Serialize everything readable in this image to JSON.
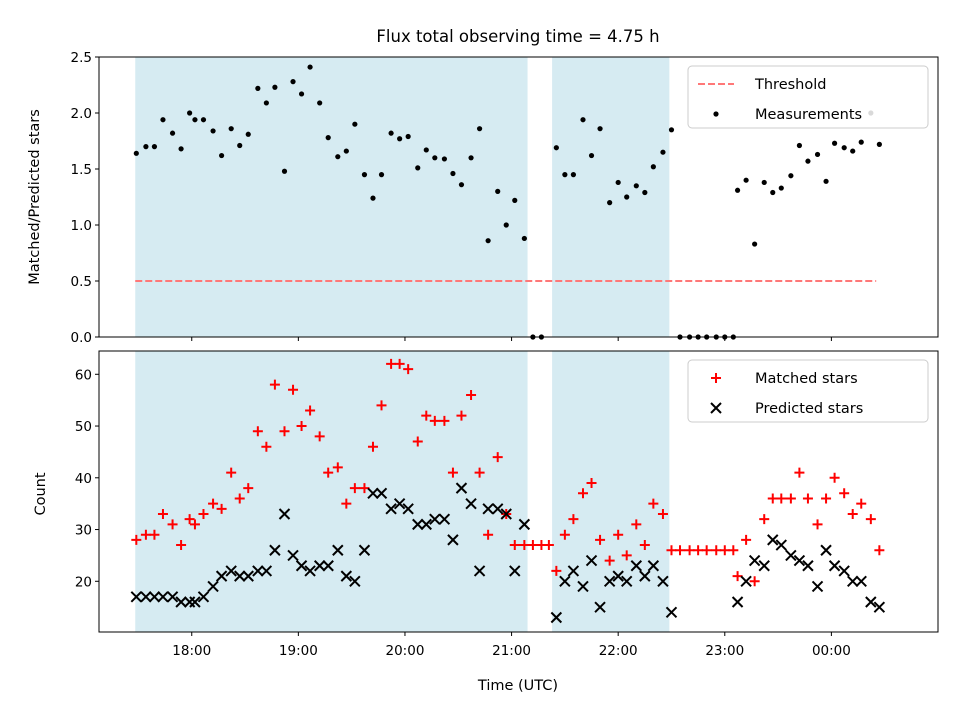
{
  "chart_data": [
    {
      "type": "scatter",
      "title": "Flux total observing time = 4.75 h",
      "xlabel": "",
      "ylabel": "Matched/Predicted stars",
      "xlim": [
        17.13,
        25.0
      ],
      "ylim": [
        0,
        2.5
      ],
      "yticks": [
        0.0,
        0.5,
        1.0,
        1.5,
        2.0,
        2.5
      ],
      "ytick_labels": [
        "0.0",
        "0.5",
        "1.0",
        "1.5",
        "2.0",
        "2.5"
      ],
      "shaded_intervals": [
        [
          17.47,
          21.15
        ],
        [
          21.38,
          22.48
        ]
      ],
      "threshold": {
        "name": "Threshold",
        "value": 0.5,
        "x_range": [
          17.47,
          24.42
        ],
        "color": "#ff7878"
      },
      "legend": [
        "Threshold",
        "Measurements"
      ],
      "series": [
        {
          "name": "Measurements",
          "color": "#000000",
          "x": [
            17.48,
            17.57,
            17.65,
            17.73,
            17.82,
            17.9,
            17.98,
            18.03,
            18.11,
            18.2,
            18.28,
            18.37,
            18.45,
            18.53,
            18.62,
            18.7,
            18.78,
            18.87,
            18.95,
            19.03,
            19.11,
            19.2,
            19.28,
            19.37,
            19.45,
            19.53,
            19.62,
            19.7,
            19.78,
            19.87,
            19.95,
            20.03,
            20.12,
            20.2,
            20.28,
            20.37,
            20.45,
            20.53,
            20.62,
            20.7,
            20.78,
            20.87,
            20.95,
            21.03,
            21.12,
            21.2,
            21.28,
            21.42,
            21.5,
            21.58,
            21.67,
            21.75,
            21.83,
            21.92,
            22.0,
            22.08,
            22.17,
            22.25,
            22.33,
            22.42,
            22.5,
            22.58,
            22.67,
            22.75,
            22.83,
            22.92,
            23.0,
            23.08,
            23.12,
            23.2,
            23.28,
            23.37,
            23.45,
            23.53,
            23.62,
            23.7,
            23.78,
            23.87,
            23.95,
            24.03,
            24.12,
            24.2,
            24.28,
            24.37,
            24.45
          ],
          "y": [
            1.64,
            1.7,
            1.7,
            1.94,
            1.82,
            1.68,
            2.0,
            1.94,
            1.94,
            1.84,
            1.62,
            1.86,
            1.71,
            1.81,
            2.22,
            2.09,
            2.23,
            1.48,
            2.28,
            2.17,
            2.41,
            2.09,
            1.78,
            1.61,
            1.66,
            1.9,
            1.45,
            1.24,
            1.45,
            1.82,
            1.77,
            1.79,
            1.51,
            1.67,
            1.6,
            1.59,
            1.46,
            1.36,
            1.6,
            1.86,
            0.86,
            1.3,
            1.0,
            1.22,
            0.88,
            0,
            0,
            1.69,
            1.45,
            1.45,
            1.94,
            1.62,
            1.86,
            1.2,
            1.38,
            1.25,
            1.35,
            1.29,
            1.52,
            1.65,
            1.85,
            0,
            0,
            0,
            0,
            0,
            0,
            0,
            1.31,
            1.4,
            0.83,
            1.38,
            1.29,
            1.33,
            1.44,
            1.71,
            1.57,
            1.63,
            1.39,
            1.73,
            1.69,
            1.66,
            1.74,
            2.0,
            1.72
          ]
        }
      ]
    },
    {
      "type": "scatter",
      "title": "",
      "xlabel": "Time (UTC)",
      "ylabel": "Count",
      "xlim": [
        17.13,
        25.0
      ],
      "ylim": [
        10.2,
        64.5
      ],
      "yticks": [
        20,
        30,
        40,
        50,
        60
      ],
      "ytick_labels": [
        "20",
        "30",
        "40",
        "50",
        "60"
      ],
      "xticks": [
        18,
        19,
        20,
        21,
        22,
        23,
        24
      ],
      "xtick_labels": [
        "18:00",
        "19:00",
        "20:00",
        "21:00",
        "22:00",
        "23:00",
        "00:00"
      ],
      "shaded_intervals": [
        [
          17.47,
          21.15
        ],
        [
          21.38,
          22.48
        ]
      ],
      "legend": [
        "Matched stars",
        "Predicted stars"
      ],
      "series": [
        {
          "name": "Matched stars",
          "marker": "+",
          "color": "#ff0000",
          "x": [
            17.48,
            17.57,
            17.65,
            17.73,
            17.82,
            17.9,
            17.98,
            18.03,
            18.11,
            18.2,
            18.28,
            18.37,
            18.45,
            18.53,
            18.62,
            18.7,
            18.78,
            18.87,
            18.95,
            19.03,
            19.11,
            19.2,
            19.28,
            19.37,
            19.45,
            19.53,
            19.62,
            19.7,
            19.78,
            19.87,
            19.95,
            20.03,
            20.12,
            20.2,
            20.28,
            20.37,
            20.45,
            20.53,
            20.62,
            20.7,
            20.78,
            20.87,
            20.95,
            21.03,
            21.12,
            21.2,
            21.28,
            21.35,
            21.42,
            21.5,
            21.58,
            21.67,
            21.75,
            21.83,
            21.92,
            22.0,
            22.08,
            22.17,
            22.25,
            22.33,
            22.42,
            22.5,
            22.58,
            22.67,
            22.75,
            22.83,
            22.92,
            23.0,
            23.08,
            23.12,
            23.2,
            23.28,
            23.37,
            23.45,
            23.53,
            23.62,
            23.7,
            23.78,
            23.87,
            23.95,
            24.03,
            24.12,
            24.2,
            24.28,
            24.37,
            24.45
          ],
          "y": [
            28,
            29,
            29,
            33,
            31,
            27,
            32,
            31,
            33,
            35,
            34,
            41,
            36,
            38,
            49,
            46,
            58,
            49,
            57,
            50,
            53,
            48,
            41,
            42,
            35,
            38,
            38,
            46,
            54,
            62,
            62,
            61,
            47,
            52,
            51,
            51,
            41,
            52,
            56,
            41,
            29,
            44,
            33,
            27,
            27,
            27,
            27,
            27,
            22,
            29,
            32,
            37,
            39,
            28,
            24,
            29,
            25,
            31,
            27,
            35,
            33,
            26,
            26,
            26,
            26,
            26,
            26,
            26,
            26,
            21,
            28,
            20,
            32,
            36,
            36,
            36,
            41,
            36,
            31,
            36,
            40,
            37,
            33,
            35,
            32,
            26
          ]
        },
        {
          "name": "Predicted stars",
          "marker": "x",
          "color": "#000000",
          "x": [
            17.48,
            17.57,
            17.65,
            17.73,
            17.82,
            17.9,
            17.98,
            18.03,
            18.11,
            18.2,
            18.28,
            18.37,
            18.45,
            18.53,
            18.62,
            18.7,
            18.78,
            18.87,
            18.95,
            19.03,
            19.11,
            19.2,
            19.28,
            19.37,
            19.45,
            19.53,
            19.62,
            19.7,
            19.78,
            19.87,
            19.95,
            20.03,
            20.12,
            20.2,
            20.28,
            20.37,
            20.45,
            20.53,
            20.62,
            20.7,
            20.78,
            20.87,
            20.95,
            21.03,
            21.12,
            21.42,
            21.5,
            21.58,
            21.67,
            21.75,
            21.83,
            21.92,
            22.0,
            22.08,
            22.17,
            22.25,
            22.33,
            22.42,
            22.5,
            23.12,
            23.2,
            23.28,
            23.37,
            23.45,
            23.53,
            23.62,
            23.7,
            23.78,
            23.87,
            23.95,
            24.03,
            24.12,
            24.2,
            24.28,
            24.37,
            24.45
          ],
          "y": [
            17,
            17,
            17,
            17,
            17,
            16,
            16,
            16,
            17,
            19,
            21,
            22,
            21,
            21,
            22,
            22,
            26,
            33,
            25,
            23,
            22,
            23,
            23,
            26,
            21,
            20,
            26,
            37,
            37,
            34,
            35,
            34,
            31,
            31,
            32,
            32,
            28,
            38,
            35,
            22,
            34,
            34,
            33,
            22,
            31,
            13,
            20,
            22,
            19,
            24,
            15,
            20,
            21,
            20,
            23,
            21,
            23,
            20,
            14,
            16,
            20,
            24,
            23,
            28,
            27,
            25,
            24,
            23,
            19,
            26,
            23,
            22,
            20,
            20,
            16,
            15
          ]
        }
      ]
    }
  ]
}
